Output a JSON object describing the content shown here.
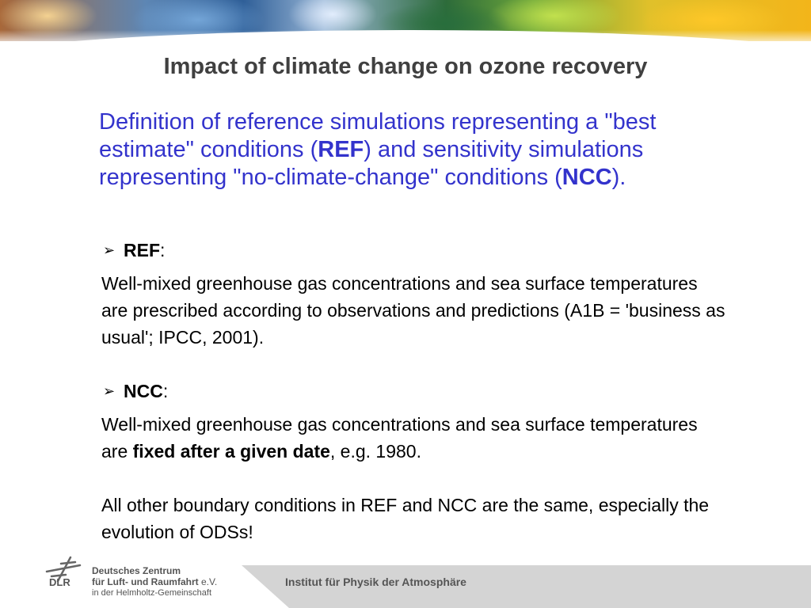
{
  "title": "Impact of climate change on ozone recovery",
  "intro": {
    "part1": "Definition of reference simulations representing a \"best estimate\" conditions (",
    "ref_bold": "REF",
    "part2": ") and sensitivity simulations representing \"no-climate-change\" conditions (",
    "ncc_bold": "NCC",
    "part3": ")."
  },
  "ref_section": {
    "arrow": "➢",
    "heading": "REF",
    "colon": ":",
    "text": "Well-mixed greenhouse gas concentrations and sea surface temperatures are prescribed according to observations and predictions (A1B = 'business as usual'; IPCC, 2001)."
  },
  "ncc_section": {
    "arrow": "➢",
    "heading": "NCC",
    "colon": ":",
    "text_part1": "Well-mixed greenhouse gas concentrations and sea surface temperatures are ",
    "text_bold": "fixed after a given date",
    "text_part2": ", e.g. 1980."
  },
  "closing": "All other boundary conditions in REF and NCC are the same, especially the evolution of ODSs!",
  "footer": {
    "logo_label": "DLR",
    "org_line1": "Deutsches Zentrum",
    "org_line2": "für Luft- und Raumfahrt",
    "org_line2_suffix": "e.V.",
    "org_line3": "in der Helmholtz-Gemeinschaft",
    "institute": "Institut für Physik der Atmosphäre"
  },
  "colors": {
    "title": "#404040",
    "intro": "#3333cc",
    "footer_band": "#d4d4d4"
  }
}
